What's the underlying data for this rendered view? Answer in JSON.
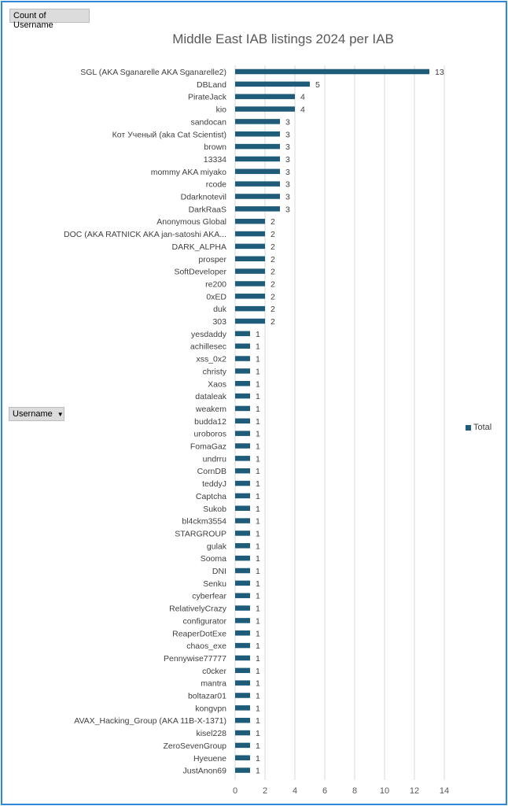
{
  "pivot": {
    "value_field": "Count of Username",
    "row_field": "Username"
  },
  "colors": {
    "bar": "#1f5c7a",
    "grid": "#d9d9d9",
    "frame": "#2e86de"
  },
  "chart_data": {
    "type": "bar",
    "orientation": "horizontal",
    "title": "Middle East IAB listings 2024 per IAB",
    "legend": "Total",
    "legend_position": "right",
    "xlim": [
      0,
      14
    ],
    "xticks": [
      0,
      2,
      4,
      6,
      8,
      10,
      12,
      14
    ],
    "grid": true,
    "categories": [
      "SGL (AKA Sganarelle AKA Sganarelle2)",
      "DBLand",
      "PirateJack",
      "kio",
      "sandocan",
      "Кот Ученый (aka Cat Scientist)",
      "brown",
      "13334",
      "mommy AKA miyako",
      "rcode",
      "Ddarknotevil",
      "DarkRaaS",
      "Anonymous Global",
      "DOC (AKA RATNICK AKA jan-satoshi AKA...",
      "DARK_ALPHA",
      "prosper",
      "SoftDeveloper",
      "re200",
      "0xED",
      "duk",
      "303",
      "yesdaddy",
      "achillesec",
      "xss_0x2",
      "christy",
      "Xaos",
      "dataleak",
      "weakem",
      "budda12",
      "uroboros",
      "FomaGaz",
      "undrru",
      "CornDB",
      "teddyJ",
      "Captcha",
      "Sukob",
      "bl4ckm3554",
      "STARGROUP",
      "gulak",
      "Sooma",
      "DNI",
      "Senku",
      "cyberfear",
      "RelativelyCrazy",
      "configurator",
      "ReaperDotExe",
      "chaos_exe",
      "Pennywise77777",
      "c0cker",
      "mantra",
      "boltazar01",
      "kongvpn",
      "AVAX_Hacking_Group (AKA 11B-X-1371)",
      "kisel228",
      "ZeroSevenGroup",
      "Hyeuene",
      "JustAnon69"
    ],
    "values": [
      13,
      5,
      4,
      4,
      3,
      3,
      3,
      3,
      3,
      3,
      3,
      3,
      2,
      2,
      2,
      2,
      2,
      2,
      2,
      2,
      2,
      1,
      1,
      1,
      1,
      1,
      1,
      1,
      1,
      1,
      1,
      1,
      1,
      1,
      1,
      1,
      1,
      1,
      1,
      1,
      1,
      1,
      1,
      1,
      1,
      1,
      1,
      1,
      1,
      1,
      1,
      1,
      1,
      1,
      1,
      1,
      1
    ]
  }
}
